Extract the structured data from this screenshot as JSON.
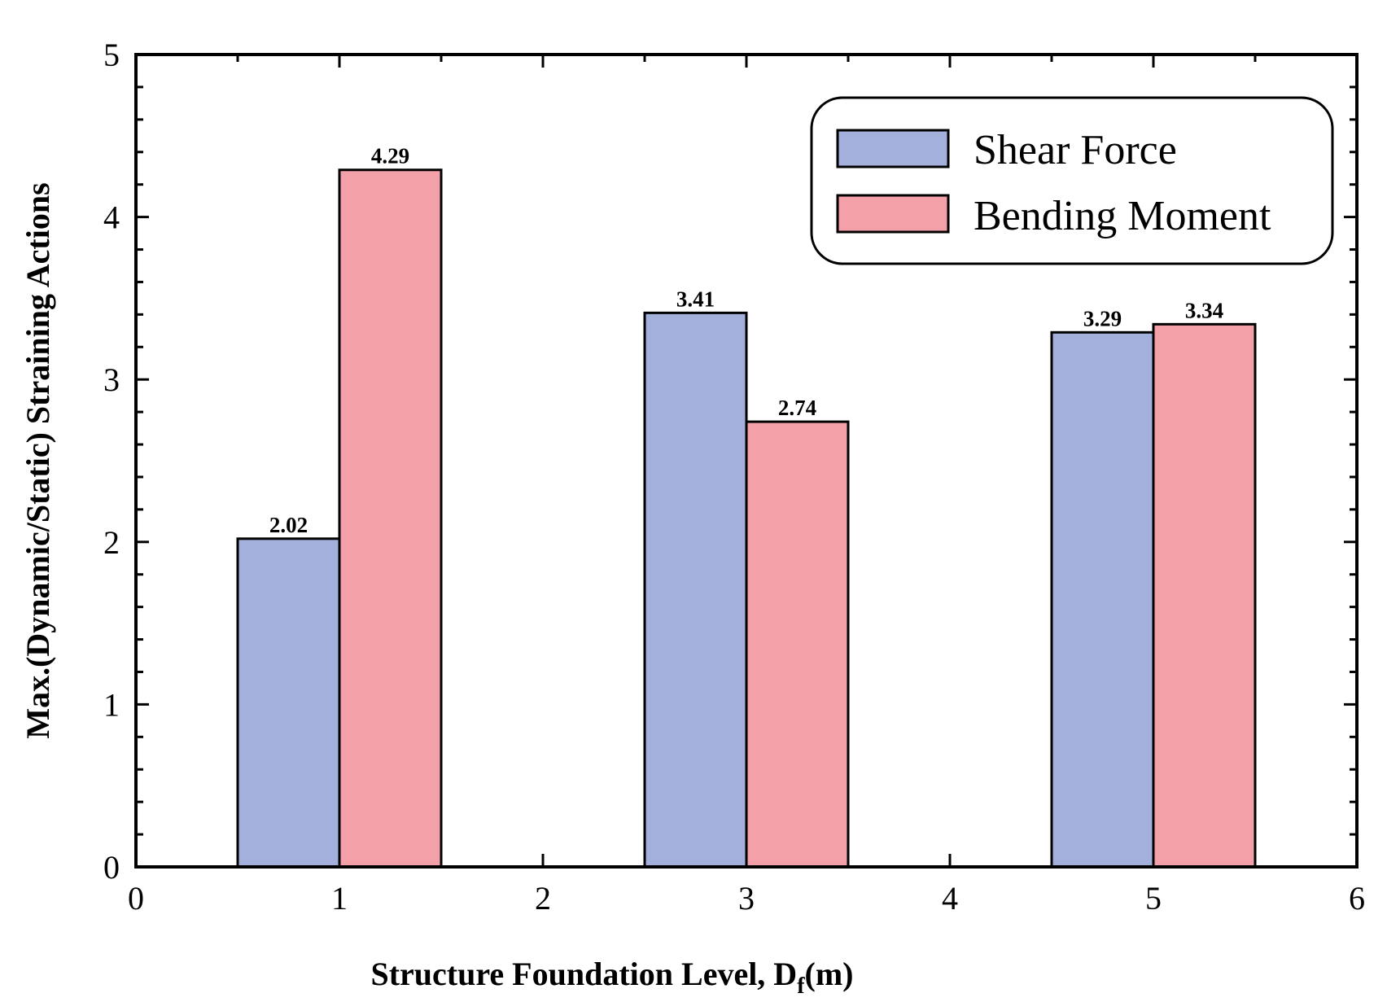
{
  "chart_data": {
    "type": "bar",
    "xlabel_main": "Structure Foundation Level, D",
    "xlabel_sub": "f",
    "xlabel_tail": "(m)",
    "ylabel": "Max.(Dynamic/Static) Straining Actions",
    "xlim": [
      0,
      6
    ],
    "ylim": [
      0,
      5
    ],
    "xticks": [
      "0",
      "1",
      "2",
      "3",
      "4",
      "5",
      "6"
    ],
    "yticks": [
      "0",
      "1",
      "2",
      "3",
      "4",
      "5"
    ],
    "categories": [
      1,
      3,
      5
    ],
    "series": [
      {
        "name": "Shear Force",
        "color": "#a4b0dc",
        "values": [
          2.02,
          3.41,
          3.29
        ],
        "labels": [
          "2.02",
          "3.41",
          "3.29"
        ]
      },
      {
        "name": "Bending Moment",
        "color": "#f4a0a8",
        "values": [
          4.29,
          2.74,
          3.34
        ],
        "labels": [
          "4.29",
          "2.74",
          "3.34"
        ]
      }
    ],
    "legend_position": "top-right",
    "grid": false
  }
}
